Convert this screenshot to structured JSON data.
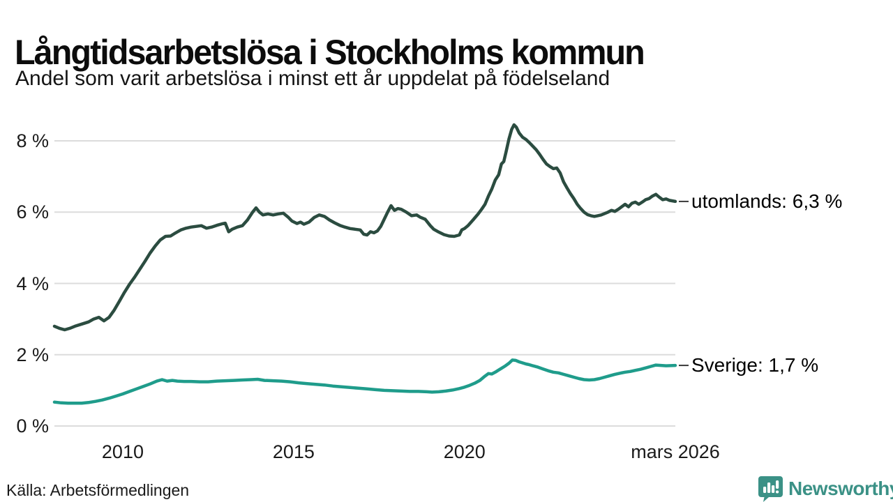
{
  "header": {
    "title": "Långtidsarbetslösa i Stockholms kommun",
    "subtitle": "Andel som varit arbetslösa i minst ett år uppdelat på födelseland"
  },
  "footer": {
    "source": "Källa: Arbetsförmedlingen",
    "brand": "Newsworthy"
  },
  "colors": {
    "utomlands_line": "#2b4c40",
    "sverige_line": "#1f9c8b",
    "grid": "#dcdcdc",
    "annotation_dash": "#3a3a3a",
    "brand_teal": "#3b9186",
    "text": "#1a1a1a"
  },
  "chart_data": {
    "type": "line",
    "title": "Långtidsarbetslösa i Stockholms kommun",
    "subtitle": "Andel som varit arbetslösa i minst ett år uppdelat på födelseland",
    "xlabel": "",
    "ylabel": "",
    "grid": "horizontal",
    "legend_position": "end-of-line-labels",
    "xlim": [
      2008.0,
      2026.17
    ],
    "ylim": [
      0,
      8
    ],
    "y_ticks": [
      {
        "label": "0 %",
        "value": 0
      },
      {
        "label": "2 %",
        "value": 2
      },
      {
        "label": "4 %",
        "value": 4
      },
      {
        "label": "6 %",
        "value": 6
      },
      {
        "label": "8 %",
        "value": 8
      }
    ],
    "x_ticks": [
      {
        "label": "2010",
        "year": 2010
      },
      {
        "label": "2015",
        "year": 2015
      },
      {
        "label": "2020",
        "year": 2020
      },
      {
        "label": "mars 2026",
        "year": 2026.17
      }
    ],
    "series": [
      {
        "name": "utomlands",
        "end_label": "utomlands: 6,3 %",
        "end_value": 6.3,
        "color_key": "utomlands_line",
        "points": [
          [
            2008.0,
            2.8
          ],
          [
            2008.15,
            2.74
          ],
          [
            2008.3,
            2.7
          ],
          [
            2008.45,
            2.74
          ],
          [
            2008.6,
            2.8
          ],
          [
            2008.8,
            2.86
          ],
          [
            2009.0,
            2.92
          ],
          [
            2009.15,
            3.0
          ],
          [
            2009.3,
            3.05
          ],
          [
            2009.45,
            2.95
          ],
          [
            2009.6,
            3.05
          ],
          [
            2009.75,
            3.25
          ],
          [
            2009.9,
            3.5
          ],
          [
            2010.05,
            3.75
          ],
          [
            2010.2,
            3.98
          ],
          [
            2010.35,
            4.18
          ],
          [
            2010.5,
            4.4
          ],
          [
            2010.65,
            4.62
          ],
          [
            2010.8,
            4.85
          ],
          [
            2010.95,
            5.05
          ],
          [
            2011.1,
            5.22
          ],
          [
            2011.25,
            5.32
          ],
          [
            2011.4,
            5.33
          ],
          [
            2011.55,
            5.42
          ],
          [
            2011.7,
            5.5
          ],
          [
            2011.85,
            5.55
          ],
          [
            2012.0,
            5.58
          ],
          [
            2012.15,
            5.6
          ],
          [
            2012.3,
            5.62
          ],
          [
            2012.45,
            5.55
          ],
          [
            2012.6,
            5.58
          ],
          [
            2012.75,
            5.63
          ],
          [
            2012.9,
            5.67
          ],
          [
            2013.0,
            5.69
          ],
          [
            2013.1,
            5.45
          ],
          [
            2013.2,
            5.52
          ],
          [
            2013.35,
            5.58
          ],
          [
            2013.5,
            5.62
          ],
          [
            2013.65,
            5.78
          ],
          [
            2013.8,
            6.0
          ],
          [
            2013.9,
            6.12
          ],
          [
            2014.0,
            6.0
          ],
          [
            2014.1,
            5.92
          ],
          [
            2014.25,
            5.95
          ],
          [
            2014.4,
            5.92
          ],
          [
            2014.55,
            5.95
          ],
          [
            2014.7,
            5.97
          ],
          [
            2014.85,
            5.85
          ],
          [
            2014.95,
            5.75
          ],
          [
            2015.1,
            5.68
          ],
          [
            2015.2,
            5.72
          ],
          [
            2015.3,
            5.66
          ],
          [
            2015.45,
            5.72
          ],
          [
            2015.6,
            5.85
          ],
          [
            2015.75,
            5.92
          ],
          [
            2015.9,
            5.88
          ],
          [
            2016.05,
            5.78
          ],
          [
            2016.2,
            5.7
          ],
          [
            2016.35,
            5.63
          ],
          [
            2016.5,
            5.58
          ],
          [
            2016.65,
            5.54
          ],
          [
            2016.8,
            5.52
          ],
          [
            2016.95,
            5.5
          ],
          [
            2017.05,
            5.38
          ],
          [
            2017.15,
            5.36
          ],
          [
            2017.25,
            5.45
          ],
          [
            2017.35,
            5.42
          ],
          [
            2017.45,
            5.47
          ],
          [
            2017.55,
            5.6
          ],
          [
            2017.65,
            5.8
          ],
          [
            2017.75,
            6.0
          ],
          [
            2017.85,
            6.18
          ],
          [
            2017.95,
            6.05
          ],
          [
            2018.05,
            6.1
          ],
          [
            2018.15,
            6.08
          ],
          [
            2018.3,
            6.0
          ],
          [
            2018.45,
            5.9
          ],
          [
            2018.6,
            5.92
          ],
          [
            2018.7,
            5.86
          ],
          [
            2018.85,
            5.8
          ],
          [
            2019.0,
            5.62
          ],
          [
            2019.1,
            5.52
          ],
          [
            2019.25,
            5.44
          ],
          [
            2019.4,
            5.37
          ],
          [
            2019.55,
            5.33
          ],
          [
            2019.7,
            5.32
          ],
          [
            2019.85,
            5.36
          ],
          [
            2019.92,
            5.5
          ],
          [
            2020.0,
            5.54
          ],
          [
            2020.1,
            5.62
          ],
          [
            2020.25,
            5.78
          ],
          [
            2020.4,
            5.95
          ],
          [
            2020.5,
            6.08
          ],
          [
            2020.6,
            6.22
          ],
          [
            2020.7,
            6.45
          ],
          [
            2020.8,
            6.65
          ],
          [
            2020.9,
            6.9
          ],
          [
            2021.0,
            7.05
          ],
          [
            2021.08,
            7.35
          ],
          [
            2021.15,
            7.42
          ],
          [
            2021.22,
            7.7
          ],
          [
            2021.3,
            8.05
          ],
          [
            2021.38,
            8.32
          ],
          [
            2021.45,
            8.45
          ],
          [
            2021.52,
            8.38
          ],
          [
            2021.6,
            8.22
          ],
          [
            2021.7,
            8.1
          ],
          [
            2021.8,
            8.04
          ],
          [
            2021.9,
            7.95
          ],
          [
            2022.0,
            7.85
          ],
          [
            2022.1,
            7.75
          ],
          [
            2022.2,
            7.62
          ],
          [
            2022.3,
            7.48
          ],
          [
            2022.4,
            7.35
          ],
          [
            2022.5,
            7.28
          ],
          [
            2022.6,
            7.22
          ],
          [
            2022.7,
            7.24
          ],
          [
            2022.8,
            7.1
          ],
          [
            2022.9,
            6.85
          ],
          [
            2023.0,
            6.68
          ],
          [
            2023.1,
            6.52
          ],
          [
            2023.2,
            6.38
          ],
          [
            2023.3,
            6.22
          ],
          [
            2023.4,
            6.1
          ],
          [
            2023.5,
            6.0
          ],
          [
            2023.6,
            5.93
          ],
          [
            2023.7,
            5.9
          ],
          [
            2023.8,
            5.88
          ],
          [
            2023.9,
            5.9
          ],
          [
            2024.0,
            5.92
          ],
          [
            2024.1,
            5.96
          ],
          [
            2024.2,
            6.0
          ],
          [
            2024.3,
            6.05
          ],
          [
            2024.4,
            6.02
          ],
          [
            2024.5,
            6.08
          ],
          [
            2024.6,
            6.15
          ],
          [
            2024.7,
            6.22
          ],
          [
            2024.8,
            6.15
          ],
          [
            2024.9,
            6.25
          ],
          [
            2025.0,
            6.28
          ],
          [
            2025.1,
            6.22
          ],
          [
            2025.2,
            6.28
          ],
          [
            2025.3,
            6.35
          ],
          [
            2025.4,
            6.38
          ],
          [
            2025.5,
            6.45
          ],
          [
            2025.6,
            6.5
          ],
          [
            2025.7,
            6.42
          ],
          [
            2025.8,
            6.35
          ],
          [
            2025.9,
            6.37
          ],
          [
            2026.0,
            6.33
          ],
          [
            2026.17,
            6.3
          ]
        ]
      },
      {
        "name": "Sverige",
        "end_label": "Sverige: 1,7 %",
        "end_value": 1.7,
        "color_key": "sverige_line",
        "points": [
          [
            2008.0,
            0.67
          ],
          [
            2008.2,
            0.65
          ],
          [
            2008.4,
            0.64
          ],
          [
            2008.6,
            0.64
          ],
          [
            2008.8,
            0.64
          ],
          [
            2009.0,
            0.66
          ],
          [
            2009.2,
            0.69
          ],
          [
            2009.4,
            0.73
          ],
          [
            2009.6,
            0.78
          ],
          [
            2009.8,
            0.84
          ],
          [
            2010.0,
            0.9
          ],
          [
            2010.2,
            0.97
          ],
          [
            2010.4,
            1.04
          ],
          [
            2010.6,
            1.11
          ],
          [
            2010.8,
            1.18
          ],
          [
            2011.0,
            1.26
          ],
          [
            2011.15,
            1.3
          ],
          [
            2011.3,
            1.26
          ],
          [
            2011.45,
            1.28
          ],
          [
            2011.6,
            1.26
          ],
          [
            2011.8,
            1.25
          ],
          [
            2012.0,
            1.25
          ],
          [
            2012.25,
            1.24
          ],
          [
            2012.5,
            1.24
          ],
          [
            2012.75,
            1.26
          ],
          [
            2013.0,
            1.27
          ],
          [
            2013.25,
            1.28
          ],
          [
            2013.5,
            1.29
          ],
          [
            2013.75,
            1.3
          ],
          [
            2013.95,
            1.31
          ],
          [
            2014.15,
            1.28
          ],
          [
            2014.4,
            1.27
          ],
          [
            2014.65,
            1.26
          ],
          [
            2014.9,
            1.24
          ],
          [
            2015.15,
            1.21
          ],
          [
            2015.4,
            1.19
          ],
          [
            2015.65,
            1.17
          ],
          [
            2015.9,
            1.15
          ],
          [
            2016.15,
            1.12
          ],
          [
            2016.4,
            1.1
          ],
          [
            2016.65,
            1.08
          ],
          [
            2016.9,
            1.06
          ],
          [
            2017.15,
            1.04
          ],
          [
            2017.4,
            1.02
          ],
          [
            2017.65,
            1.0
          ],
          [
            2017.9,
            0.99
          ],
          [
            2018.15,
            0.98
          ],
          [
            2018.4,
            0.97
          ],
          [
            2018.65,
            0.97
          ],
          [
            2018.9,
            0.96
          ],
          [
            2019.05,
            0.95
          ],
          [
            2019.25,
            0.96
          ],
          [
            2019.45,
            0.98
          ],
          [
            2019.65,
            1.01
          ],
          [
            2019.85,
            1.05
          ],
          [
            2020.0,
            1.09
          ],
          [
            2020.15,
            1.14
          ],
          [
            2020.3,
            1.2
          ],
          [
            2020.45,
            1.28
          ],
          [
            2020.6,
            1.4
          ],
          [
            2020.7,
            1.47
          ],
          [
            2020.8,
            1.46
          ],
          [
            2020.9,
            1.51
          ],
          [
            2021.0,
            1.57
          ],
          [
            2021.1,
            1.63
          ],
          [
            2021.2,
            1.69
          ],
          [
            2021.3,
            1.76
          ],
          [
            2021.4,
            1.85
          ],
          [
            2021.5,
            1.84
          ],
          [
            2021.6,
            1.8
          ],
          [
            2021.7,
            1.77
          ],
          [
            2021.8,
            1.74
          ],
          [
            2021.9,
            1.72
          ],
          [
            2022.0,
            1.69
          ],
          [
            2022.15,
            1.65
          ],
          [
            2022.3,
            1.6
          ],
          [
            2022.45,
            1.55
          ],
          [
            2022.6,
            1.51
          ],
          [
            2022.75,
            1.49
          ],
          [
            2022.9,
            1.45
          ],
          [
            2023.05,
            1.41
          ],
          [
            2023.2,
            1.37
          ],
          [
            2023.35,
            1.33
          ],
          [
            2023.5,
            1.3
          ],
          [
            2023.65,
            1.29
          ],
          [
            2023.8,
            1.3
          ],
          [
            2023.95,
            1.33
          ],
          [
            2024.1,
            1.37
          ],
          [
            2024.25,
            1.41
          ],
          [
            2024.4,
            1.45
          ],
          [
            2024.55,
            1.48
          ],
          [
            2024.7,
            1.51
          ],
          [
            2024.85,
            1.53
          ],
          [
            2025.0,
            1.56
          ],
          [
            2025.15,
            1.59
          ],
          [
            2025.3,
            1.63
          ],
          [
            2025.45,
            1.67
          ],
          [
            2025.6,
            1.71
          ],
          [
            2025.75,
            1.7
          ],
          [
            2025.9,
            1.69
          ],
          [
            2026.17,
            1.7
          ]
        ]
      }
    ]
  }
}
